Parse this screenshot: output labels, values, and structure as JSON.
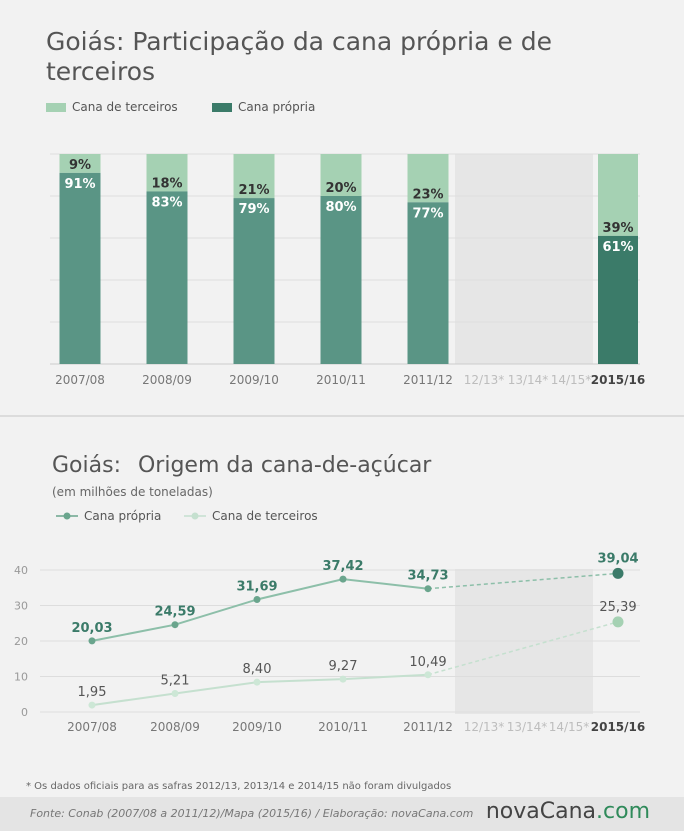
{
  "bar_chart": {
    "title": "Goiás: Participação da cana própria e de terceiros",
    "legend": {
      "third_party": "Cana de terceiros",
      "own": "Cana própria"
    },
    "colors": {
      "third_party": "#a5d1b3",
      "own": "#5a9585",
      "own_highlight": "#3b7b69",
      "gap_band": "#e6e6e6"
    }
  },
  "line_chart": {
    "title": "Goiás:",
    "title_rest": "Origem da cana-de-açúcar",
    "subtitle": "(em milhões de toneladas)",
    "legend": {
      "own": "Cana própria",
      "third_party": "Cana de terceiros"
    },
    "colors": {
      "own_line": "#8dbfa9",
      "own_point": "#6aa58d",
      "own_last": "#3b7b69",
      "own_label": "#3b7b69",
      "third_line": "#c5e0cf",
      "third_point": "#cde7d6",
      "third_last": "#a5d1b3",
      "third_label": "#555555"
    }
  },
  "chart_data": [
    {
      "type": "bar",
      "stacked": true,
      "normalized_percent": true,
      "categories": [
        "2007/08",
        "2008/09",
        "2009/10",
        "2010/11",
        "2011/12",
        "12/13*",
        "13/14*",
        "14/15*",
        "2015/16"
      ],
      "series": [
        {
          "name": "Cana de terceiros",
          "values": [
            9,
            18,
            21,
            20,
            23,
            null,
            null,
            null,
            39
          ],
          "labels": [
            "9%",
            "18%",
            "21%",
            "20%",
            "23%",
            "",
            "",
            "",
            "39%"
          ]
        },
        {
          "name": "Cana própria",
          "values": [
            91,
            83,
            79,
            80,
            77,
            null,
            null,
            null,
            61
          ],
          "labels": [
            "91%",
            "83%",
            "79%",
            "80%",
            "77%",
            "",
            "",
            "",
            "61%"
          ]
        }
      ],
      "ylim": [
        0,
        100
      ],
      "grid": true,
      "missing_categories_shaded": [
        "12/13*",
        "13/14*",
        "14/15*"
      ]
    },
    {
      "type": "line",
      "categories": [
        "2007/08",
        "2008/09",
        "2009/10",
        "2010/11",
        "2011/12",
        "12/13*",
        "13/14*",
        "14/15*",
        "2015/16"
      ],
      "series": [
        {
          "name": "Cana própria",
          "values": [
            20.03,
            24.59,
            31.69,
            37.42,
            34.73,
            null,
            null,
            null,
            39.04
          ],
          "labels": [
            "20,03",
            "24,59",
            "31,69",
            "37,42",
            "34,73",
            "",
            "",
            "",
            "39,04"
          ]
        },
        {
          "name": "Cana de terceiros",
          "values": [
            1.95,
            5.21,
            8.4,
            9.27,
            10.49,
            null,
            null,
            null,
            25.39
          ],
          "labels": [
            "1,95",
            "5,21",
            "8,40",
            "9,27",
            "10,49",
            "",
            "",
            "",
            "25,39"
          ]
        }
      ],
      "yticks": [
        0,
        10,
        20,
        30,
        40
      ],
      "ylim": [
        0,
        40
      ],
      "gap_connector": "dashed",
      "missing_categories_shaded": [
        "12/13*",
        "13/14*",
        "14/15*"
      ]
    }
  ],
  "note": "* Os dados oficiais para as safras 2012/13, 2013/14 e 2014/15 não foram divulgados",
  "footer": {
    "source": "Fonte:  Conab (2007/08 a 2011/12)/Mapa (2015/16) / Elaboração:  novaCana.com",
    "brand_main": "novaCana",
    "brand_suffix": ".com"
  }
}
